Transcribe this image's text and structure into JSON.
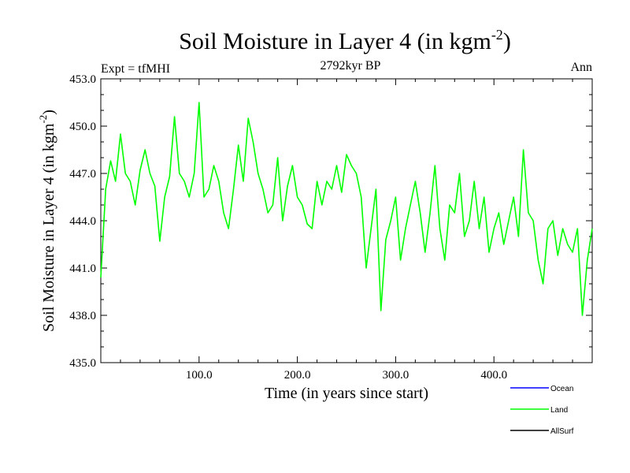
{
  "title": {
    "main": "Soil Moisture in Layer 4 (in kgm",
    "sup": "-2",
    "close": ")"
  },
  "subtitle": "2792kyr BP",
  "experiment": "Expt = tfMHI",
  "season": "Ann",
  "colors": {
    "land": "#00ff00",
    "ocean": "#0000ff",
    "allsurf": "#000000",
    "axis": "#000000"
  },
  "chart_data": {
    "type": "line",
    "title": "Soil Moisture in Layer 4 (in kgm-2)",
    "xlabel": "Time (in years since start)",
    "ylabel_main": "Soil Moisture in Layer 4 (in kgm",
    "ylabel_sup": "-2",
    "ylabel_close": ")",
    "xlim": [
      0,
      500
    ],
    "ylim": [
      435.0,
      453.0
    ],
    "xticks": [
      100,
      200,
      300,
      400
    ],
    "xtick_labels": [
      "100.0",
      "200.0",
      "300.0",
      "400.0"
    ],
    "yticks": [
      435,
      438,
      441,
      444,
      447,
      450,
      453
    ],
    "ytick_labels": [
      "435.0",
      "438.0",
      "441.0",
      "444.0",
      "447.0",
      "450.0",
      "453.0"
    ],
    "legend": [
      {
        "name": "Ocean",
        "color": "#0000ff"
      },
      {
        "name": "Land",
        "color": "#00ff00"
      },
      {
        "name": "AllSurf",
        "color": "#000000"
      }
    ],
    "series": [
      {
        "name": "Land",
        "color": "#00ff00",
        "x": [
          0,
          5,
          10,
          15,
          20,
          25,
          30,
          35,
          40,
          45,
          50,
          55,
          60,
          65,
          70,
          75,
          80,
          85,
          90,
          95,
          100,
          105,
          110,
          115,
          120,
          125,
          130,
          135,
          140,
          145,
          150,
          155,
          160,
          165,
          170,
          175,
          180,
          185,
          190,
          195,
          200,
          205,
          210,
          215,
          220,
          225,
          230,
          235,
          240,
          245,
          250,
          255,
          260,
          265,
          270,
          275,
          280,
          285,
          290,
          295,
          300,
          305,
          310,
          315,
          320,
          325,
          330,
          335,
          340,
          345,
          350,
          355,
          360,
          365,
          370,
          375,
          380,
          385,
          390,
          395,
          400,
          405,
          410,
          415,
          420,
          425,
          430,
          435,
          440,
          445,
          450,
          455,
          460,
          465,
          470,
          475,
          480,
          485,
          490,
          495,
          500
        ],
        "values": [
          440.4,
          446.0,
          447.8,
          446.5,
          449.5,
          447.0,
          446.5,
          445.0,
          447.2,
          448.5,
          447.0,
          446.2,
          442.7,
          445.5,
          446.8,
          450.6,
          447.0,
          446.5,
          445.5,
          447.0,
          451.5,
          445.5,
          446.0,
          447.5,
          446.5,
          444.5,
          443.5,
          446.0,
          448.8,
          446.5,
          450.5,
          449.0,
          447.0,
          446.0,
          444.5,
          445.0,
          448.0,
          444.0,
          446.2,
          447.5,
          445.5,
          445.0,
          443.8,
          443.5,
          446.5,
          445.0,
          446.5,
          446.0,
          447.5,
          445.8,
          448.2,
          447.5,
          447.0,
          445.5,
          441.0,
          443.5,
          446.0,
          438.3,
          442.8,
          444.0,
          445.5,
          441.5,
          443.5,
          445.0,
          446.5,
          444.5,
          442.0,
          444.5,
          447.5,
          443.5,
          441.5,
          445.0,
          444.5,
          447.0,
          443.0,
          444.0,
          446.5,
          443.5,
          445.5,
          442.0,
          443.5,
          444.5,
          442.5,
          444.0,
          445.5,
          443.0,
          448.5,
          444.5,
          444.0,
          441.5,
          440.0,
          443.5,
          444.0,
          441.8,
          443.5,
          442.5,
          442.0,
          443.5,
          438.0,
          441.5,
          443.5
        ]
      }
    ]
  }
}
